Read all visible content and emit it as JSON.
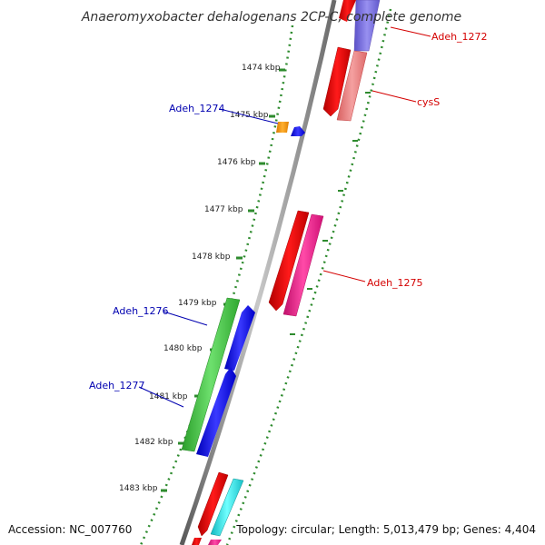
{
  "title": "Anaeromyxobacter dehalogenans 2CP-C, complete genome",
  "footer": {
    "accession": "Accession: NC_007760",
    "topology": "Topology: circular; Length: 5,013,479 bp; Genes: 4,404"
  },
  "colors": {
    "backbone": "#8a8a8a",
    "tick": "#2e8b2e",
    "red_label": "#d40000",
    "blue_label": "#0000b0"
  },
  "ruler_labels": [
    "1474 kbp",
    "1475 kbp",
    "1476 kbp",
    "1477 kbp",
    "1478 kbp",
    "1479 kbp",
    "1480 kbp",
    "1481 kbp",
    "1482 kbp",
    "1483 kbp"
  ],
  "gene_labels": {
    "adeh_1272": "Adeh_1272",
    "cyss": "cysS",
    "adeh_1274": "Adeh_1274",
    "adeh_1275": "Adeh_1275",
    "adeh_1276": "Adeh_1276",
    "adeh_1277": "Adeh_1277"
  }
}
